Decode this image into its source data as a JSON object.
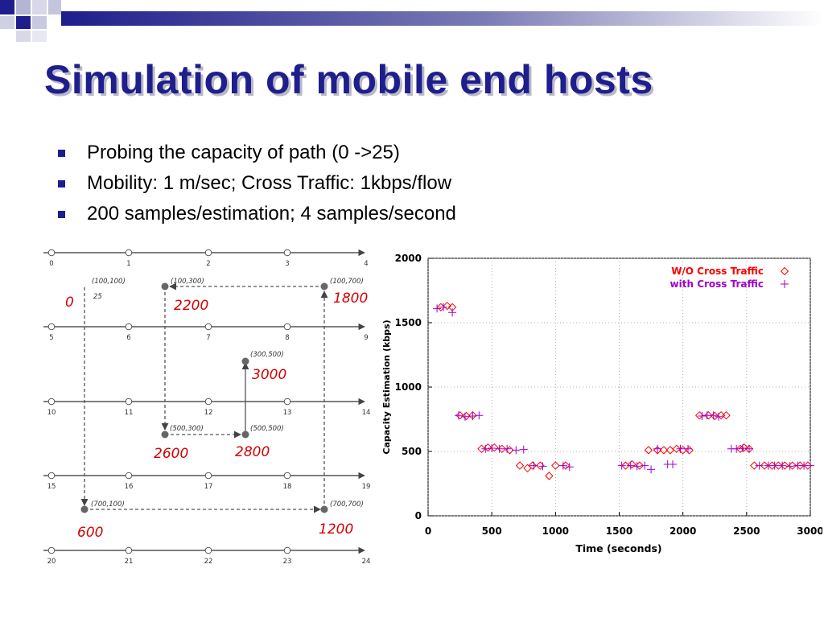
{
  "slide": {
    "title": "Simulation of mobile end hosts",
    "bullets": [
      "Probing the capacity of path (0 ->25)",
      "Mobility: 1 m/sec;    Cross Traffic: 1kbps/flow",
      "200 samples/estimation;    4 samples/second"
    ]
  },
  "colors": {
    "title": "#1e1e8c",
    "bullet": "#1e1e8c",
    "red_label": "#d40000",
    "wo_series": "#ff0000",
    "with_series": "#a000c8"
  },
  "topology": {
    "node_ids": [
      "0",
      "1",
      "2",
      "3",
      "4",
      "5",
      "6",
      "7",
      "8",
      "9",
      "10",
      "11",
      "12",
      "13",
      "14",
      "15",
      "16",
      "17",
      "18",
      "19",
      "20",
      "21",
      "22",
      "23",
      "24"
    ],
    "waypoints": [
      {
        "coord": "(100,100)",
        "extra": "25",
        "time": "0"
      },
      {
        "coord": "(100,300)",
        "time": "2200"
      },
      {
        "coord": "(100,700)",
        "time": "1800"
      },
      {
        "coord": "(300,500)",
        "time": "3000"
      },
      {
        "coord": "(500,300)",
        "time": "2600"
      },
      {
        "coord": "(500,500)",
        "time": "2800"
      },
      {
        "coord": "(700,100)",
        "time": "600"
      },
      {
        "coord": "(700,700)",
        "time": "1200"
      }
    ]
  },
  "chart_data": {
    "type": "scatter",
    "xlabel": "Time (seconds)",
    "ylabel": "Capacity Estimation (kbps)",
    "xlim": [
      0,
      3000
    ],
    "ylim": [
      0,
      2000
    ],
    "xticks": [
      "0",
      "500",
      "1000",
      "1500",
      "2000",
      "2500",
      "3000"
    ],
    "yticks": [
      "0",
      "500",
      "1000",
      "1500",
      "2000"
    ],
    "legend": "top-right",
    "series": [
      {
        "name": "W/O Cross Traffic",
        "marker": "diamond",
        "points": [
          [
            100,
            1620
          ],
          [
            150,
            1630
          ],
          [
            190,
            1620
          ],
          [
            250,
            780
          ],
          [
            300,
            775
          ],
          [
            350,
            780
          ],
          [
            420,
            520
          ],
          [
            470,
            530
          ],
          [
            520,
            530
          ],
          [
            580,
            520
          ],
          [
            640,
            510
          ],
          [
            720,
            390
          ],
          [
            780,
            370
          ],
          [
            820,
            390
          ],
          [
            880,
            390
          ],
          [
            950,
            310
          ],
          [
            1000,
            390
          ],
          [
            1080,
            390
          ],
          [
            1550,
            390
          ],
          [
            1600,
            400
          ],
          [
            1660,
            390
          ],
          [
            1730,
            510
          ],
          [
            1800,
            510
          ],
          [
            1850,
            510
          ],
          [
            1900,
            510
          ],
          [
            1950,
            520
          ],
          [
            2000,
            510
          ],
          [
            2050,
            510
          ],
          [
            2130,
            780
          ],
          [
            2200,
            780
          ],
          [
            2250,
            775
          ],
          [
            2300,
            780
          ],
          [
            2340,
            780
          ],
          [
            2450,
            520
          ],
          [
            2480,
            530
          ],
          [
            2520,
            520
          ],
          [
            2560,
            390
          ],
          [
            2640,
            390
          ],
          [
            2700,
            390
          ],
          [
            2750,
            390
          ],
          [
            2800,
            390
          ],
          [
            2860,
            390
          ],
          [
            2920,
            390
          ],
          [
            2980,
            390
          ]
        ]
      },
      {
        "name": "with Cross Traffic",
        "marker": "plus",
        "points": [
          [
            70,
            1610
          ],
          [
            120,
            1620
          ],
          [
            190,
            1580
          ],
          [
            240,
            780
          ],
          [
            290,
            770
          ],
          [
            350,
            775
          ],
          [
            400,
            780
          ],
          [
            450,
            520
          ],
          [
            500,
            525
          ],
          [
            560,
            520
          ],
          [
            620,
            520
          ],
          [
            690,
            510
          ],
          [
            750,
            515
          ],
          [
            830,
            390
          ],
          [
            900,
            385
          ],
          [
            1060,
            390
          ],
          [
            1110,
            380
          ],
          [
            1520,
            390
          ],
          [
            1590,
            390
          ],
          [
            1640,
            385
          ],
          [
            1700,
            390
          ],
          [
            1750,
            360
          ],
          [
            1800,
            520
          ],
          [
            1880,
            400
          ],
          [
            1920,
            400
          ],
          [
            1980,
            520
          ],
          [
            2040,
            520
          ],
          [
            2150,
            775
          ],
          [
            2190,
            780
          ],
          [
            2240,
            780
          ],
          [
            2280,
            770
          ],
          [
            2380,
            520
          ],
          [
            2420,
            520
          ],
          [
            2470,
            525
          ],
          [
            2520,
            520
          ],
          [
            2600,
            390
          ],
          [
            2670,
            390
          ],
          [
            2720,
            390
          ],
          [
            2780,
            390
          ],
          [
            2840,
            385
          ],
          [
            2900,
            390
          ],
          [
            2950,
            390
          ],
          [
            3000,
            390
          ]
        ]
      }
    ]
  }
}
